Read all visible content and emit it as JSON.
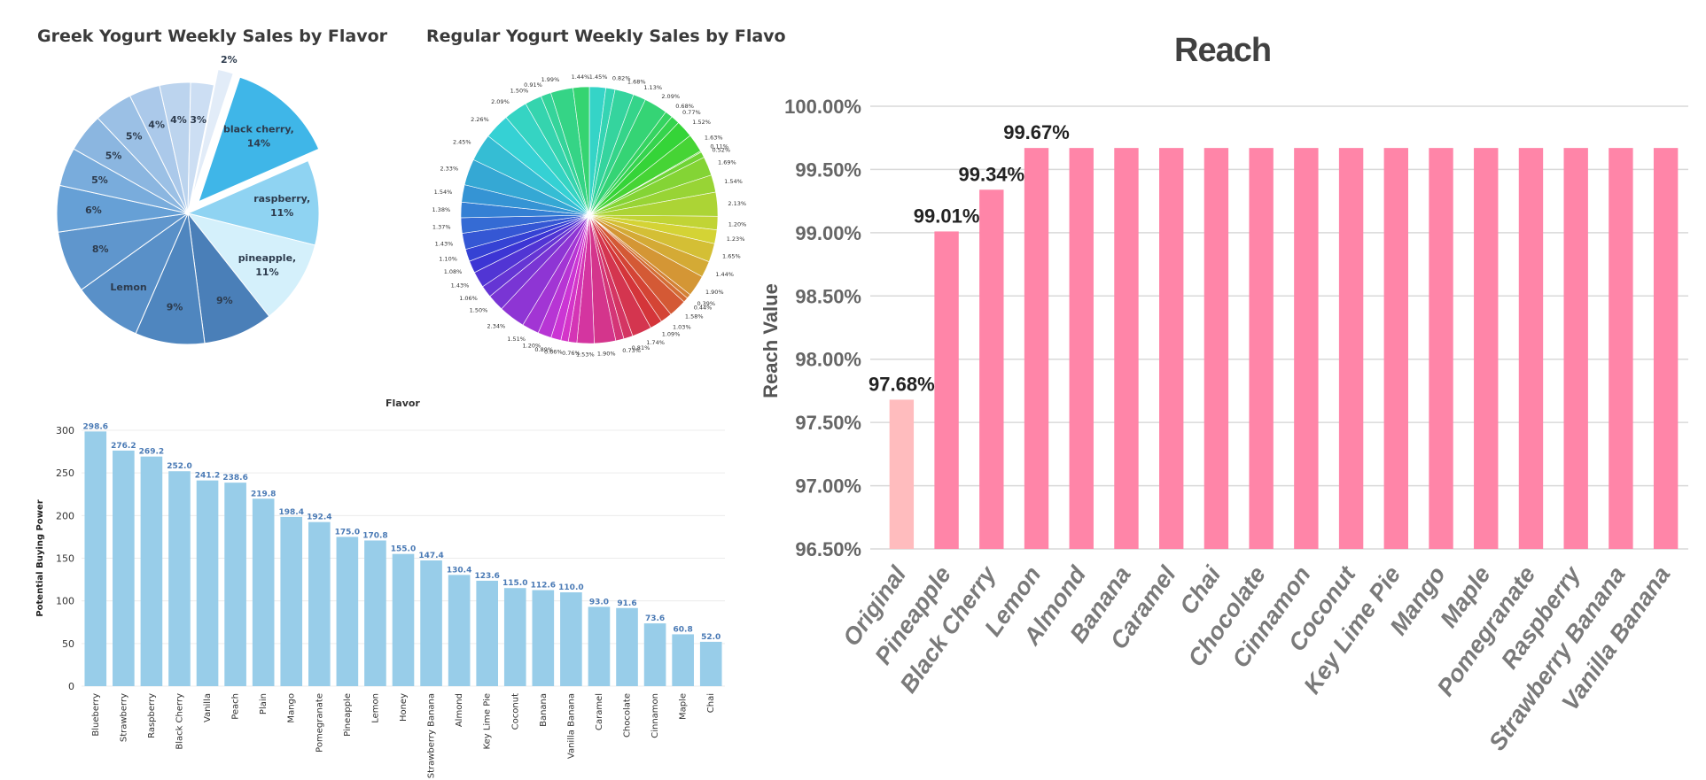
{
  "chart_data": [
    {
      "type": "pie",
      "title": "Greek Yogurt Weekly Sales by Flavor",
      "slices": [
        {
          "label": "black cherry,",
          "value": 14,
          "display": "14%",
          "color": "#3fb6e8",
          "exploded": true
        },
        {
          "label": "raspberry,",
          "value": 11,
          "display": "11%",
          "color": "#8fd3f2"
        },
        {
          "label": "pineapple,",
          "value": 11,
          "display": "11%",
          "color": "#d4f0fb"
        },
        {
          "label": "",
          "value": 9,
          "display": "9%",
          "color": "#4a7fb8"
        },
        {
          "label": "",
          "value": 9,
          "display": "9%",
          "color": "#4f86bf"
        },
        {
          "label": "Lemon",
          "value": 9,
          "display": "",
          "color": "#5990c8"
        },
        {
          "label": "",
          "value": 8,
          "display": "8%",
          "color": "#5f96cd"
        },
        {
          "label": "",
          "value": 6,
          "display": "6%",
          "color": "#66a0d6"
        },
        {
          "label": "",
          "value": 5,
          "display": "5%",
          "color": "#79acdc"
        },
        {
          "label": "",
          "value": 5,
          "display": "5%",
          "color": "#8bb6e0"
        },
        {
          "label": "",
          "value": 5,
          "display": "5%",
          "color": "#9bc0e5"
        },
        {
          "label": "",
          "value": 4,
          "display": "4%",
          "color": "#abc9ea"
        },
        {
          "label": "",
          "value": 4,
          "display": "4%",
          "color": "#bcd4ee"
        },
        {
          "label": "",
          "value": 3,
          "display": "3%",
          "color": "#ccdef3"
        },
        {
          "label": "",
          "value": 2,
          "display": "2%",
          "color": "#e2ecf8",
          "exploded": true
        }
      ]
    },
    {
      "type": "pie",
      "title": "Regular Yogurt Weekly Sales by Flavo",
      "slice_values": [
        1.45,
        0.82,
        1.68,
        1.13,
        2.09,
        0.68,
        0.77,
        1.52,
        1.63,
        0.11,
        0.52,
        1.69,
        1.54,
        2.13,
        1.2,
        1.23,
        1.65,
        1.44,
        1.9,
        0.39,
        0.44,
        1.58,
        1.03,
        1.09,
        1.74,
        0.81,
        0.73,
        1.9,
        1.53,
        0.76,
        0.66,
        0.89,
        1.2,
        1.51,
        2.34,
        1.5,
        1.06,
        1.43,
        1.08,
        1.1,
        1.43,
        1.37,
        1.38,
        1.54,
        2.33,
        2.45,
        2.26,
        2.09,
        1.5,
        0.91,
        1.99,
        1.44
      ],
      "slice_labels": [
        "1.45%",
        "0.82%",
        "1.68%",
        "1.13%",
        "2.09%",
        "0.68%",
        "0.77%",
        "1.52%",
        "1.63%",
        "0.11%",
        "0.52%",
        "1.69%",
        "1.54%",
        "2.13%",
        "1.20%",
        "1.23%",
        "1.65%",
        "1.44%",
        "1.90%",
        "0.39%",
        "0.44%",
        "1.58%",
        "1.03%",
        "1.09%",
        "1.74%",
        "0.81%",
        "0.73%",
        "1.90%",
        "1.53%",
        "0.76%",
        "0.66%",
        "0.89%",
        "1.20%",
        "1.51%",
        "2.34%",
        "1.50%",
        "1.06%",
        "1.43%",
        "1.08%",
        "1.10%",
        "1.43%",
        "1.37%",
        "1.38%",
        "1.54%",
        "2.33%",
        "2.45%",
        "2.26%",
        "2.09%",
        "1.50%",
        "0.91%",
        "1.99%",
        "1.44%"
      ]
    },
    {
      "type": "bar",
      "title": "Flavor",
      "ylabel": "Potential Buying Power",
      "ylim": [
        0,
        300
      ],
      "yticks": [
        0,
        50,
        100,
        150,
        200,
        250,
        300
      ],
      "bar_color": "#98cde9",
      "label_color": "#4a7ab5",
      "categories": [
        "Blueberry",
        "Strawberry",
        "Raspberry",
        "Black Cherry",
        "Vanilla",
        "Peach",
        "Plain",
        "Mango",
        "Pomegranate",
        "Pineapple",
        "Lemon",
        "Honey",
        "Strawberry Banana",
        "Almond",
        "Key Lime Pie",
        "Coconut",
        "Banana",
        "Vanilla Banana",
        "Caramel",
        "Chocolate",
        "Cinnamon",
        "Maple",
        "Chai"
      ],
      "values": [
        298.6,
        276.2,
        269.2,
        252.0,
        241.2,
        238.6,
        219.8,
        198.4,
        192.4,
        175.0,
        170.8,
        155.0,
        147.4,
        130.4,
        123.6,
        115.0,
        112.6,
        110.0,
        93.0,
        91.6,
        73.6,
        60.8,
        52.0
      ],
      "value_labels": [
        "298.6",
        "276.2",
        "269.2",
        "252.0",
        "241.2",
        "238.6",
        "219.8",
        "198.4",
        "192.4",
        "175.0",
        "170.8",
        "155.0",
        "147.4",
        "130.4",
        "123.6",
        "115.0",
        "112.6",
        "110.0",
        "93.0",
        "91.6",
        "73.6",
        "60.8",
        "52.0"
      ]
    },
    {
      "type": "bar",
      "title": "Reach",
      "ylabel": "Reach Value",
      "ylim": [
        96.5,
        100.0
      ],
      "yticks": [
        "96.50%",
        "97.00%",
        "97.50%",
        "98.00%",
        "98.50%",
        "99.00%",
        "99.50%",
        "100.00%"
      ],
      "ytick_values": [
        96.5,
        97.0,
        97.5,
        98.0,
        98.5,
        99.0,
        99.5,
        100.0
      ],
      "bar_color": "#ff85a8",
      "first_bar_color": "#ffbcbe",
      "categories": [
        "Original",
        "Pineapple",
        "Black Cherry",
        "Lemon",
        "Almond",
        "Banana",
        "Caramel",
        "Chai",
        "Chocolate",
        "Cinnamon",
        "Coconut",
        "Key Lime Pie",
        "Mango",
        "Maple",
        "Pomegranate",
        "Raspberry",
        "Strawberry Banana",
        "Vanilla Banana"
      ],
      "values": [
        97.68,
        99.01,
        99.34,
        99.67,
        99.67,
        99.67,
        99.67,
        99.67,
        99.67,
        99.67,
        99.67,
        99.67,
        99.67,
        99.67,
        99.67,
        99.67,
        99.67,
        99.67
      ],
      "value_labels": [
        "97.68%",
        "99.01%",
        "99.34%",
        "99.67%",
        "",
        "",
        "",
        "",
        "",
        "",
        "",
        "",
        "",
        "",
        "",
        "",
        "",
        ""
      ]
    }
  ]
}
